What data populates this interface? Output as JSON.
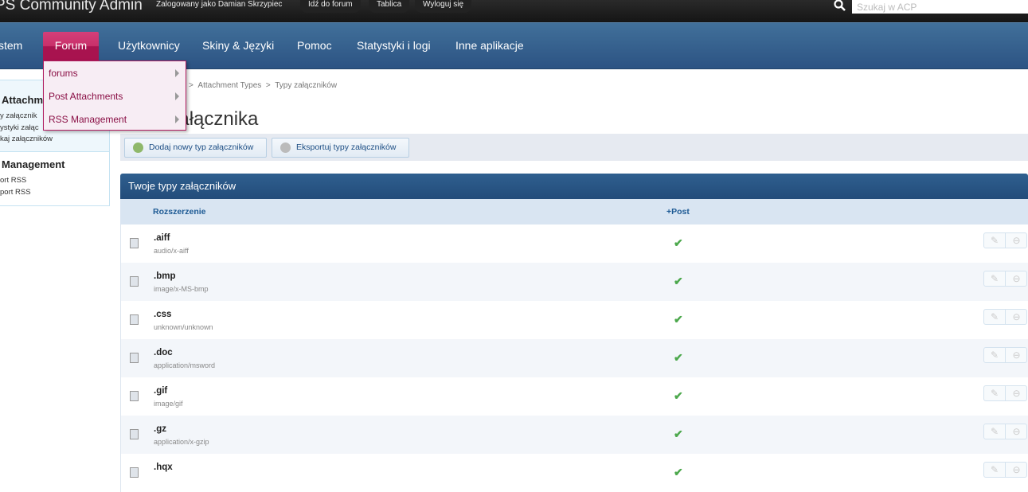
{
  "header": {
    "app_title": "PS Community Admin",
    "logged_in": "Zalogowany jako Damian Skrzypiec",
    "links": [
      "Idź do forum",
      "Tablica",
      "Wyloguj się"
    ],
    "search_placeholder": "Szukaj w ACP"
  },
  "nav": {
    "items": [
      "stem",
      "Forum",
      "Użytkownicy",
      "Skiny & Języki",
      "Pomoc",
      "Statystyki i logi",
      "Inne aplikacje"
    ],
    "active": "Forum"
  },
  "dropdown": {
    "items": [
      "forums",
      "Post Attachments",
      "RSS Management"
    ]
  },
  "sidebar": {
    "sections": [
      {
        "heading": "Attachm",
        "items": [
          "y załącznik",
          "ystyki załąc",
          "kaj załączników"
        ]
      },
      {
        "heading": "Management",
        "items": [
          "ort RSS",
          "port RSS"
        ]
      }
    ]
  },
  "breadcrumb": {
    "sep": ">",
    "items": [
      "Attachment Types",
      "Typy załączników"
    ]
  },
  "page_title": "Typy załącznika",
  "toolbar": {
    "add": "Dodaj nowy typ załączników",
    "export": "Eksportuj typy załączników"
  },
  "table": {
    "title": "Twoje typy załączników",
    "columns": [
      "Rozszerzenie",
      "+Post"
    ],
    "rows": [
      {
        "ext": ".aiff",
        "mime": "audio/x-aiff",
        "post": true
      },
      {
        "ext": ".bmp",
        "mime": "image/x-MS-bmp",
        "post": true
      },
      {
        "ext": ".css",
        "mime": "unknown/unknown",
        "post": true
      },
      {
        "ext": ".doc",
        "mime": "application/msword",
        "post": true
      },
      {
        "ext": ".gif",
        "mime": "image/gif",
        "post": true
      },
      {
        "ext": ".gz",
        "mime": "application/x-gzip",
        "post": true
      },
      {
        "ext": ".hqx",
        "mime": "",
        "post": true
      }
    ]
  },
  "colors": {
    "nav": "#2c5383",
    "active_tab": "#c8306a",
    "check": "#4ca84c"
  }
}
